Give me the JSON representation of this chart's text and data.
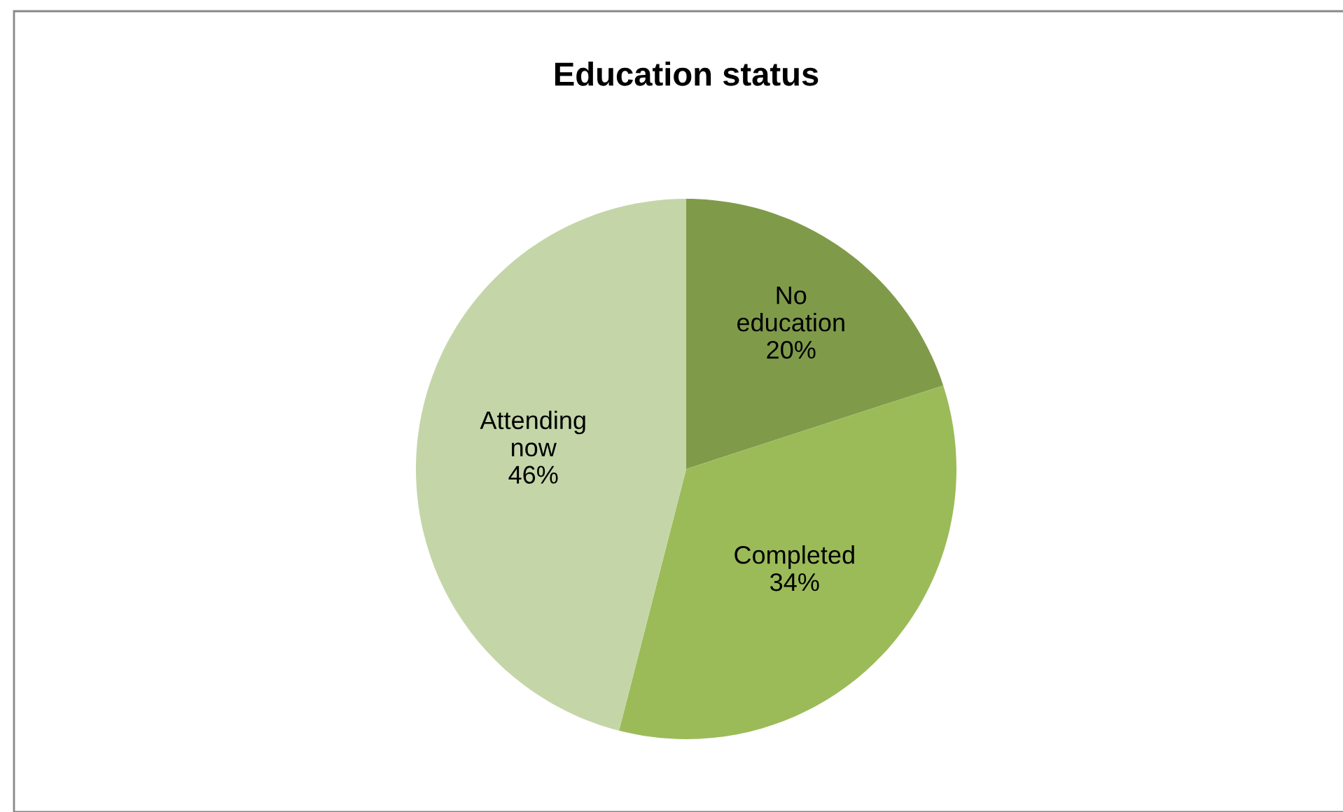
{
  "chart_data": {
    "type": "pie",
    "title": "Education status",
    "categories": [
      "No education",
      "Completed",
      "Attending now"
    ],
    "values": [
      20,
      34,
      46
    ],
    "value_labels": [
      "20%",
      "34%",
      "46%"
    ],
    "colors": [
      "#7f9b4a",
      "#9bbb59",
      "#c4d6a8"
    ],
    "legend": false
  }
}
